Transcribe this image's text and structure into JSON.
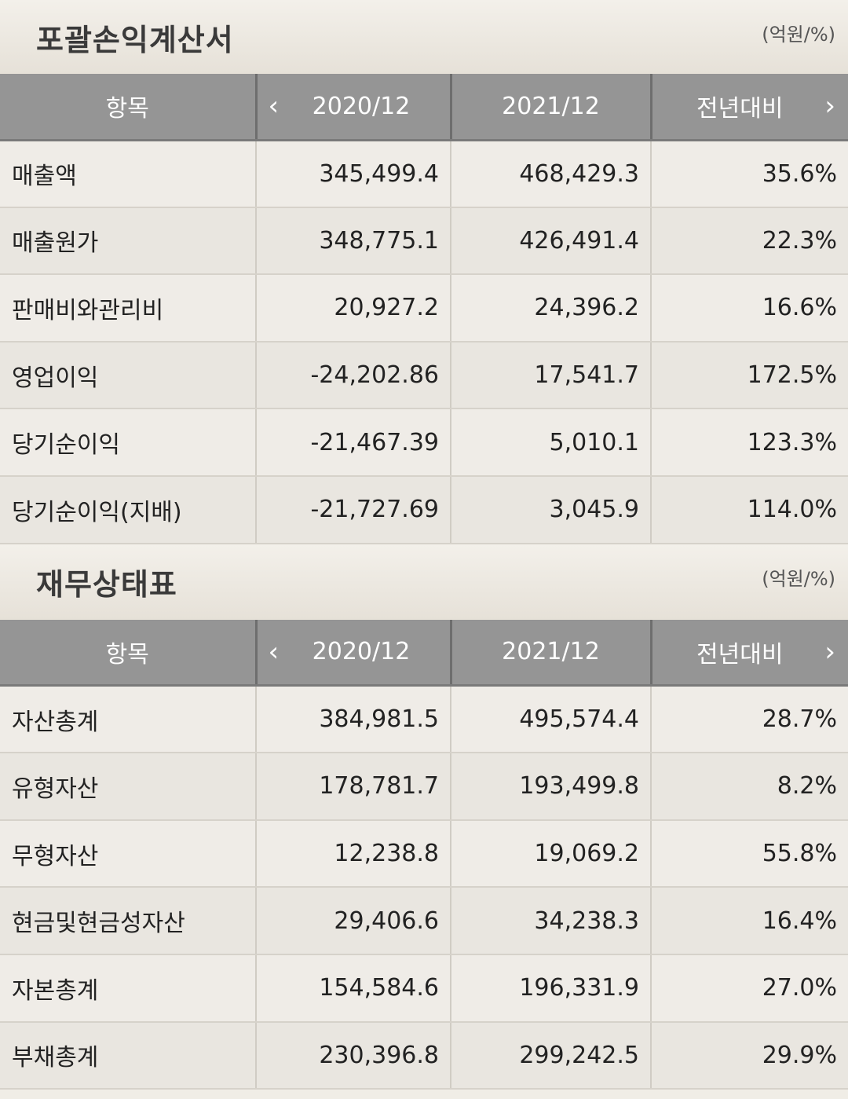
{
  "income_statement": {
    "title": "포괄손익계산서",
    "unit": "(억원/%)",
    "headers": {
      "item": "항목",
      "prev": "2020/12",
      "curr": "2021/12",
      "yoy": "전년대비",
      "prev_arrow": "‹",
      "next_arrow": "›"
    },
    "rows": [
      {
        "item": "매출액",
        "prev": "345,499.4",
        "curr": "468,429.3",
        "yoy": "35.6%"
      },
      {
        "item": "매출원가",
        "prev": "348,775.1",
        "curr": "426,491.4",
        "yoy": "22.3%"
      },
      {
        "item": "판매비와관리비",
        "prev": "20,927.2",
        "curr": "24,396.2",
        "yoy": "16.6%"
      },
      {
        "item": "영업이익",
        "prev": "-24,202.86",
        "curr": "17,541.7",
        "yoy": "172.5%"
      },
      {
        "item": "당기순이익",
        "prev": "-21,467.39",
        "curr": "5,010.1",
        "yoy": "123.3%"
      },
      {
        "item": "당기순이익(지배)",
        "prev": "-21,727.69",
        "curr": "3,045.9",
        "yoy": "114.0%"
      }
    ]
  },
  "balance_sheet": {
    "title": "재무상태표",
    "unit": "(억원/%)",
    "headers": {
      "item": "항목",
      "prev": "2020/12",
      "curr": "2021/12",
      "yoy": "전년대비",
      "prev_arrow": "‹",
      "next_arrow": "›"
    },
    "rows": [
      {
        "item": "자산총계",
        "prev": "384,981.5",
        "curr": "495,574.4",
        "yoy": "28.7%"
      },
      {
        "item": "유형자산",
        "prev": "178,781.7",
        "curr": "193,499.8",
        "yoy": "8.2%"
      },
      {
        "item": "무형자산",
        "prev": "12,238.8",
        "curr": "19,069.2",
        "yoy": "55.8%"
      },
      {
        "item": "현금및현금성자산",
        "prev": "29,406.6",
        "curr": "34,238.3",
        "yoy": "16.4%"
      },
      {
        "item": "자본총계",
        "prev": "154,584.6",
        "curr": "196,331.9",
        "yoy": "27.0%"
      },
      {
        "item": "부채총계",
        "prev": "230,396.8",
        "curr": "299,242.5",
        "yoy": "29.9%"
      }
    ]
  },
  "colors": {
    "header_bg": "#959595",
    "negative": "#d33b30",
    "row_bg": "#efece7"
  }
}
